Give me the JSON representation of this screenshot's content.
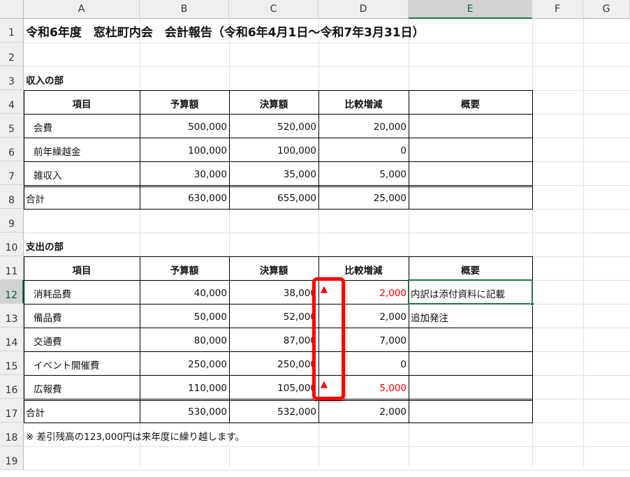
{
  "columns": [
    "A",
    "B",
    "C",
    "D",
    "E",
    "F",
    "G"
  ],
  "selected_column": "E",
  "selected_row": 12,
  "rows": [
    1,
    2,
    3,
    4,
    5,
    6,
    7,
    8,
    9,
    10,
    11,
    12,
    13,
    14,
    15,
    16,
    17,
    18,
    19
  ],
  "cells": [
    {
      "r": 1,
      "c": 0,
      "text": "令和6年度　窓杜町内会　会計報告（令和6年4月1日～令和7年3月31日）",
      "bold": true,
      "size": "title"
    },
    {
      "r": 3,
      "c": 0,
      "text": "収入の部",
      "bold": true
    },
    {
      "r": 4,
      "c": 0,
      "text": "項目",
      "bold": true,
      "align": "center"
    },
    {
      "r": 4,
      "c": 1,
      "text": "予算額",
      "bold": true,
      "align": "center"
    },
    {
      "r": 4,
      "c": 2,
      "text": "決算額",
      "bold": true,
      "align": "center"
    },
    {
      "r": 4,
      "c": 3,
      "text": "比較増減",
      "bold": true,
      "align": "center"
    },
    {
      "r": 4,
      "c": 4,
      "text": "概要",
      "bold": true,
      "align": "center"
    },
    {
      "r": 5,
      "c": 0,
      "text": "会費",
      "indent": true
    },
    {
      "r": 5,
      "c": 1,
      "text": "500,000",
      "align": "right"
    },
    {
      "r": 5,
      "c": 2,
      "text": "520,000",
      "align": "right"
    },
    {
      "r": 5,
      "c": 3,
      "text": "20,000",
      "align": "right"
    },
    {
      "r": 6,
      "c": 0,
      "text": "前年繰越金",
      "indent": true
    },
    {
      "r": 6,
      "c": 1,
      "text": "100,000",
      "align": "right"
    },
    {
      "r": 6,
      "c": 2,
      "text": "100,000",
      "align": "right"
    },
    {
      "r": 6,
      "c": 3,
      "text": "0",
      "align": "right"
    },
    {
      "r": 7,
      "c": 0,
      "text": "雑収入",
      "indent": true
    },
    {
      "r": 7,
      "c": 1,
      "text": "30,000",
      "align": "right"
    },
    {
      "r": 7,
      "c": 2,
      "text": "35,000",
      "align": "right"
    },
    {
      "r": 7,
      "c": 3,
      "text": "5,000",
      "align": "right"
    },
    {
      "r": 8,
      "c": 0,
      "text": "合計"
    },
    {
      "r": 8,
      "c": 1,
      "text": "630,000",
      "align": "right"
    },
    {
      "r": 8,
      "c": 2,
      "text": "655,000",
      "align": "right"
    },
    {
      "r": 8,
      "c": 3,
      "text": "25,000",
      "align": "right"
    },
    {
      "r": 10,
      "c": 0,
      "text": "支出の部",
      "bold": true
    },
    {
      "r": 11,
      "c": 0,
      "text": "項目",
      "bold": true,
      "align": "center"
    },
    {
      "r": 11,
      "c": 1,
      "text": "予算額",
      "bold": true,
      "align": "center"
    },
    {
      "r": 11,
      "c": 2,
      "text": "決算額",
      "bold": true,
      "align": "center"
    },
    {
      "r": 11,
      "c": 3,
      "text": "比較増減",
      "bold": true,
      "align": "center"
    },
    {
      "r": 11,
      "c": 4,
      "text": "概要",
      "bold": true,
      "align": "center"
    },
    {
      "r": 12,
      "c": 0,
      "text": "消耗品費",
      "indent": true
    },
    {
      "r": 12,
      "c": 1,
      "text": "40,000",
      "align": "right"
    },
    {
      "r": 12,
      "c": 2,
      "text": "38,000",
      "align": "right"
    },
    {
      "r": 12,
      "c": 3,
      "text": "2,000",
      "align": "right",
      "red": true,
      "triangle": true
    },
    {
      "r": 12,
      "c": 4,
      "text": "内訳は添付資料に記載"
    },
    {
      "r": 13,
      "c": 0,
      "text": "備品費",
      "indent": true
    },
    {
      "r": 13,
      "c": 1,
      "text": "50,000",
      "align": "right"
    },
    {
      "r": 13,
      "c": 2,
      "text": "52,000",
      "align": "right"
    },
    {
      "r": 13,
      "c": 3,
      "text": "2,000",
      "align": "right"
    },
    {
      "r": 13,
      "c": 4,
      "text": "追加発注"
    },
    {
      "r": 14,
      "c": 0,
      "text": "交通費",
      "indent": true
    },
    {
      "r": 14,
      "c": 1,
      "text": "80,000",
      "align": "right"
    },
    {
      "r": 14,
      "c": 2,
      "text": "87,000",
      "align": "right"
    },
    {
      "r": 14,
      "c": 3,
      "text": "7,000",
      "align": "right"
    },
    {
      "r": 15,
      "c": 0,
      "text": "イベント開催費",
      "indent": true
    },
    {
      "r": 15,
      "c": 1,
      "text": "250,000",
      "align": "right"
    },
    {
      "r": 15,
      "c": 2,
      "text": "250,000",
      "align": "right"
    },
    {
      "r": 15,
      "c": 3,
      "text": "0",
      "align": "right"
    },
    {
      "r": 16,
      "c": 0,
      "text": "広報費",
      "indent": true
    },
    {
      "r": 16,
      "c": 1,
      "text": "110,000",
      "align": "right"
    },
    {
      "r": 16,
      "c": 2,
      "text": "105,000",
      "align": "right"
    },
    {
      "r": 16,
      "c": 3,
      "text": "5,000",
      "align": "right",
      "red": true,
      "triangle": true
    },
    {
      "r": 17,
      "c": 0,
      "text": "合計"
    },
    {
      "r": 17,
      "c": 1,
      "text": "530,000",
      "align": "right"
    },
    {
      "r": 17,
      "c": 2,
      "text": "532,000",
      "align": "right"
    },
    {
      "r": 17,
      "c": 3,
      "text": "2,000",
      "align": "right"
    },
    {
      "r": 18,
      "c": 0,
      "text": "※ 差引残高の123,000円は来年度に繰り越します。"
    }
  ],
  "triangle_glyph": "▲",
  "colors": {
    "negative": "#ff0000",
    "selection": "#217346",
    "highlight_box": "#ff0000"
  }
}
